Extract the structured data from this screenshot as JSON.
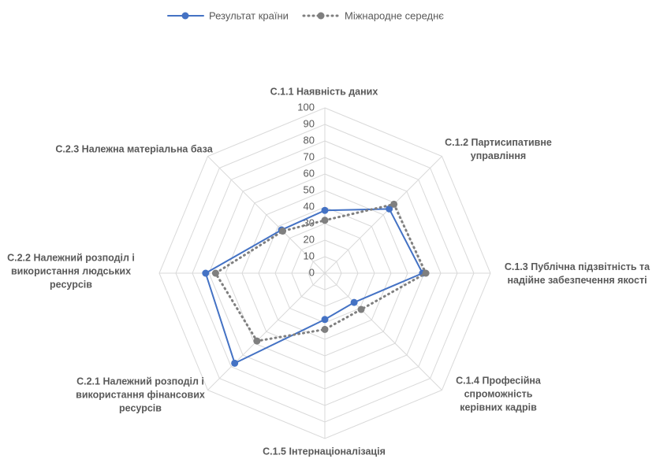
{
  "chart_data": {
    "type": "radar",
    "categories": [
      "C.1.1 Наявність даних",
      "C.1.2 Партисипативне управління",
      "C.1.3 Публічна підзвітність та надійне забезпечення якості",
      "C.1.4 Професійна спроможність керівних кадрів",
      "C.1.5 Інтернаціоналізація",
      "C.2.1 Належний розподіл і використання фінансових ресурсів",
      "C.2.2 Належний розподіл і використання людських ресурсів",
      "C.2.3 Належна матеріальна база"
    ],
    "series": [
      {
        "name": "Результат країни",
        "color": "#4472c4",
        "style": "solid",
        "values": [
          38,
          55,
          59,
          25,
          28,
          77,
          72,
          37
        ]
      },
      {
        "name": "Міжнародне середнє",
        "color": "#7f7f7f",
        "style": "dotted",
        "values": [
          32,
          59,
          61,
          31,
          34,
          58,
          66,
          36
        ]
      }
    ],
    "rlim": [
      0,
      100
    ],
    "rticks": [
      0,
      10,
      20,
      30,
      40,
      50,
      60,
      70,
      80,
      90,
      100
    ],
    "grid": true,
    "legend": "top"
  }
}
